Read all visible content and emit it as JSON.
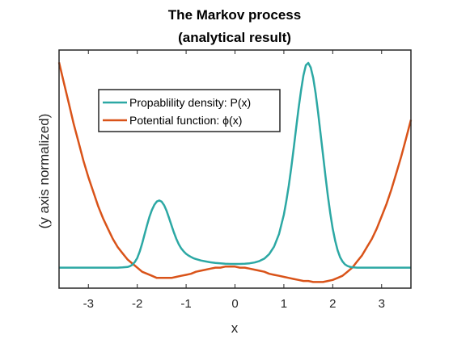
{
  "chart_data": {
    "type": "line",
    "title": "The Markov process",
    "subtitle": "(analytical result)",
    "xlabel": "x",
    "ylabel": "(y axis normalized)",
    "xlim": [
      -3.6,
      3.6
    ],
    "ylim": [
      -0.1,
      1.06
    ],
    "x_ticks": [
      -3,
      -2,
      -1,
      0,
      1,
      2,
      3
    ],
    "x_tick_labels": [
      "-3",
      "-2",
      "-1",
      "0",
      "1",
      "2",
      "3"
    ],
    "y_ticks_shown": false,
    "grid": false,
    "legend_position": "top-left",
    "series": [
      {
        "name": "Propablility density: P(x)",
        "color": "#2CA8A4",
        "x": [
          -3.6,
          -3.4,
          -3.2,
          -3.0,
          -2.8,
          -2.6,
          -2.4,
          -2.3,
          -2.2,
          -2.15,
          -2.1,
          -2.05,
          -2.0,
          -1.95,
          -1.9,
          -1.85,
          -1.8,
          -1.75,
          -1.7,
          -1.65,
          -1.6,
          -1.55,
          -1.5,
          -1.45,
          -1.4,
          -1.35,
          -1.3,
          -1.25,
          -1.2,
          -1.15,
          -1.1,
          -1.05,
          -1.0,
          -0.95,
          -0.9,
          -0.85,
          -0.8,
          -0.7,
          -0.6,
          -0.5,
          -0.4,
          -0.3,
          -0.2,
          -0.1,
          0.0,
          0.1,
          0.2,
          0.3,
          0.4,
          0.5,
          0.6,
          0.7,
          0.8,
          0.9,
          1.0,
          1.05,
          1.1,
          1.15,
          1.2,
          1.25,
          1.3,
          1.35,
          1.4,
          1.45,
          1.5,
          1.55,
          1.6,
          1.65,
          1.7,
          1.75,
          1.8,
          1.85,
          1.9,
          1.95,
          2.0,
          2.05,
          2.1,
          2.15,
          2.2,
          2.25,
          2.3,
          2.35,
          2.4,
          2.5,
          2.6,
          2.8,
          3.0,
          3.2,
          3.4,
          3.6
        ],
        "values": [
          0.0,
          0.0,
          0.0,
          0.0,
          0.0,
          0.0,
          0.0,
          0.001,
          0.003,
          0.007,
          0.014,
          0.027,
          0.047,
          0.078,
          0.117,
          0.162,
          0.207,
          0.248,
          0.281,
          0.306,
          0.322,
          0.327,
          0.321,
          0.304,
          0.277,
          0.243,
          0.206,
          0.171,
          0.14,
          0.114,
          0.094,
          0.079,
          0.067,
          0.059,
          0.052,
          0.046,
          0.042,
          0.035,
          0.03,
          0.026,
          0.023,
          0.021,
          0.019,
          0.018,
          0.018,
          0.018,
          0.019,
          0.021,
          0.025,
          0.032,
          0.044,
          0.066,
          0.102,
          0.163,
          0.258,
          0.323,
          0.399,
          0.485,
          0.579,
          0.677,
          0.773,
          0.862,
          0.936,
          0.986,
          0.997,
          0.975,
          0.924,
          0.849,
          0.757,
          0.655,
          0.55,
          0.447,
          0.35,
          0.264,
          0.19,
          0.13,
          0.084,
          0.051,
          0.03,
          0.016,
          0.008,
          0.004,
          0.002,
          0.0,
          0.0,
          0.0,
          0.0,
          0.0,
          0.0,
          0.0
        ]
      },
      {
        "name": "Potential function: ϕ(x)",
        "color": "#D95319",
        "x": [
          -3.6,
          -3.5,
          -3.4,
          -3.3,
          -3.2,
          -3.1,
          -3.0,
          -2.9,
          -2.8,
          -2.7,
          -2.6,
          -2.5,
          -2.4,
          -2.3,
          -2.2,
          -2.1,
          -2.0,
          -1.9,
          -1.8,
          -1.7,
          -1.6,
          -1.5,
          -1.4,
          -1.3,
          -1.2,
          -1.1,
          -1.0,
          -0.9,
          -0.8,
          -0.7,
          -0.6,
          -0.5,
          -0.4,
          -0.3,
          -0.2,
          -0.1,
          0.0,
          0.1,
          0.2,
          0.3,
          0.4,
          0.5,
          0.6,
          0.7,
          0.8,
          0.9,
          1.0,
          1.1,
          1.2,
          1.3,
          1.4,
          1.5,
          1.6,
          1.7,
          1.8,
          1.9,
          2.0,
          2.1,
          2.2,
          2.3,
          2.4,
          2.5,
          2.6,
          2.7,
          2.8,
          2.9,
          3.0,
          3.1,
          3.2,
          3.3,
          3.4,
          3.5,
          3.6
        ],
        "values": [
          1.0,
          0.9,
          0.8,
          0.7,
          0.61,
          0.52,
          0.44,
          0.37,
          0.3,
          0.24,
          0.19,
          0.14,
          0.1,
          0.07,
          0.04,
          0.02,
          0.0,
          -0.02,
          -0.03,
          -0.04,
          -0.05,
          -0.05,
          -0.05,
          -0.05,
          -0.045,
          -0.04,
          -0.035,
          -0.03,
          -0.02,
          -0.015,
          -0.01,
          -0.005,
          0.0,
          0.0,
          0.005,
          0.005,
          0.005,
          0.0,
          0.0,
          -0.005,
          -0.01,
          -0.015,
          -0.02,
          -0.03,
          -0.035,
          -0.04,
          -0.045,
          -0.05,
          -0.055,
          -0.06,
          -0.065,
          -0.065,
          -0.07,
          -0.07,
          -0.07,
          -0.065,
          -0.06,
          -0.05,
          -0.04,
          -0.02,
          0.0,
          0.03,
          0.06,
          0.1,
          0.14,
          0.19,
          0.25,
          0.31,
          0.38,
          0.46,
          0.54,
          0.63,
          0.72
        ]
      }
    ]
  }
}
